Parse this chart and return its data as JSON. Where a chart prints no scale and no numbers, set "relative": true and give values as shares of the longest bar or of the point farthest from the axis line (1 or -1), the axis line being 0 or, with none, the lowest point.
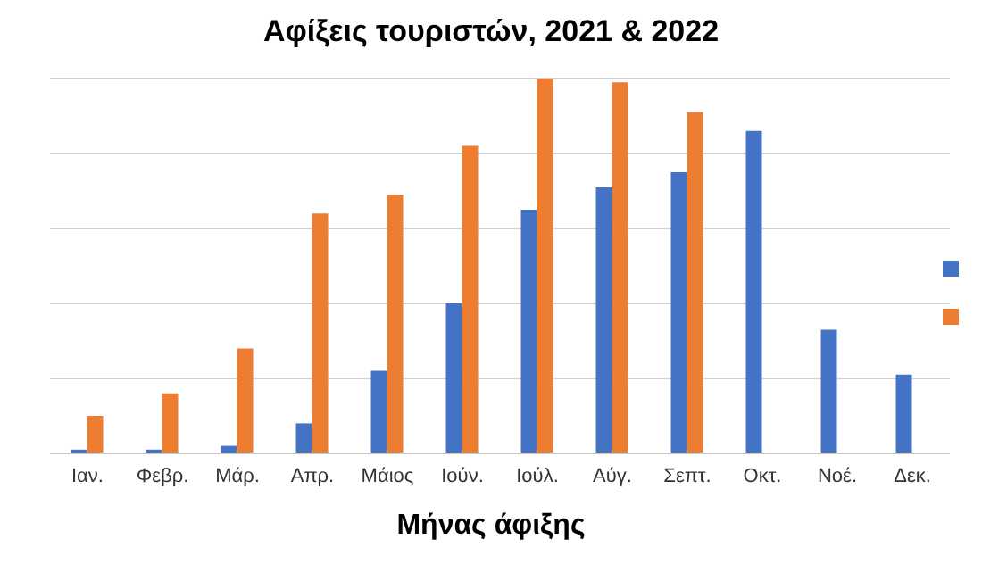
{
  "chart_data": {
    "type": "bar",
    "title": "Αφίξεις τουριστών, 2021 & 2022",
    "xlabel": "Μήνας άφιξης",
    "relative": true,
    "grid": "y",
    "categories": [
      "Ιαν.",
      "Φεβρ.",
      "Μάρ.",
      "Απρ.",
      "Μάιος",
      "Ιούν.",
      "Ιούλ.",
      "Αύγ.",
      "Σεπτ.",
      "Οκτ.",
      "Νοέ.",
      "Δεκ."
    ],
    "series": [
      {
        "color": "#4472c4",
        "values": [
          0.01,
          0.01,
          0.02,
          0.08,
          0.22,
          0.4,
          0.65,
          0.71,
          0.75,
          0.86,
          0.33,
          0.21
        ]
      },
      {
        "color": "#ed7d31",
        "values": [
          0.1,
          0.16,
          0.28,
          0.64,
          0.69,
          0.82,
          1,
          0.99,
          0.91,
          null,
          null,
          null
        ]
      }
    ]
  }
}
